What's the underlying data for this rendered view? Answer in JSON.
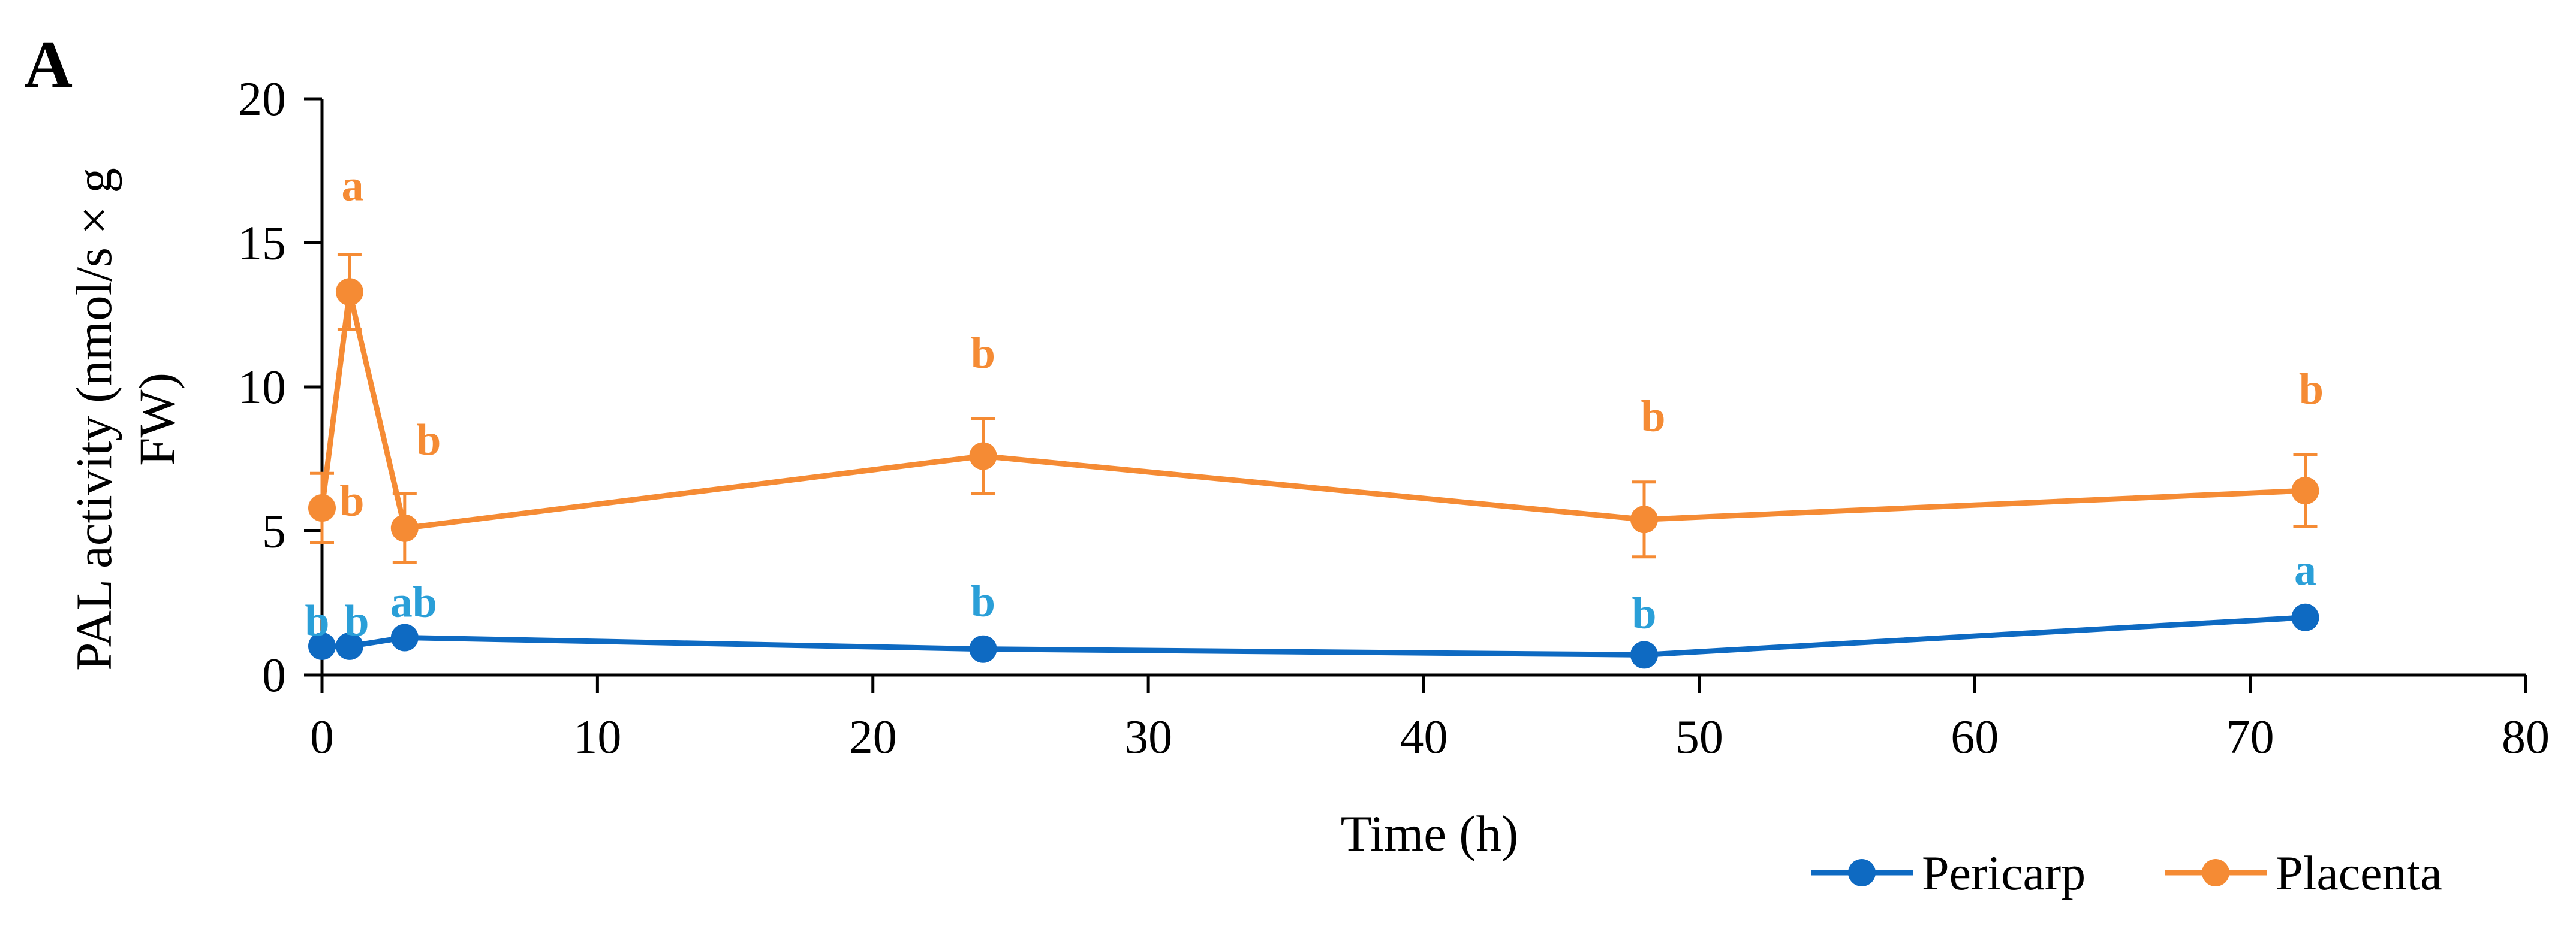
{
  "panel_label": "A",
  "chart_data": {
    "type": "line",
    "title": "",
    "xlabel": "Time (h)",
    "ylabel_lines": [
      "PAL activity (nmol/s × g",
      "FW)"
    ],
    "xlim": [
      0,
      80
    ],
    "ylim": [
      0,
      20
    ],
    "x_ticks": [
      0,
      10,
      20,
      30,
      40,
      50,
      60,
      70,
      80
    ],
    "y_ticks": [
      0,
      5,
      10,
      15,
      20
    ],
    "x_tick_labels": [
      "0",
      "10",
      "20",
      "30",
      "40",
      "50",
      "60",
      "70",
      "80"
    ],
    "y_tick_labels": [
      "0",
      "5",
      "10",
      "15",
      "20"
    ],
    "grid": false,
    "legend_position": "bottom-right",
    "x": [
      0,
      1,
      3,
      24,
      48,
      72
    ],
    "series": [
      {
        "name": "Pericarp",
        "color": "#0e6ac2",
        "label_color": "#2a9fd8",
        "values": [
          1.0,
          1.0,
          1.3,
          0.9,
          0.7,
          2.0
        ],
        "error": [
          0,
          0,
          0,
          0,
          0,
          0
        ],
        "sig_labels": [
          "b",
          "b",
          "ab",
          "b",
          "b",
          "a"
        ]
      },
      {
        "name": "Placenta",
        "color": "#f58b34",
        "label_color": "#f58b34",
        "values": [
          5.8,
          13.3,
          5.1,
          7.6,
          5.4,
          6.4
        ],
        "error": [
          1.2,
          1.3,
          1.2,
          1.3,
          1.3,
          1.25
        ],
        "sig_labels": [
          "b",
          "a",
          "b",
          "b",
          "b",
          "b"
        ]
      }
    ]
  }
}
